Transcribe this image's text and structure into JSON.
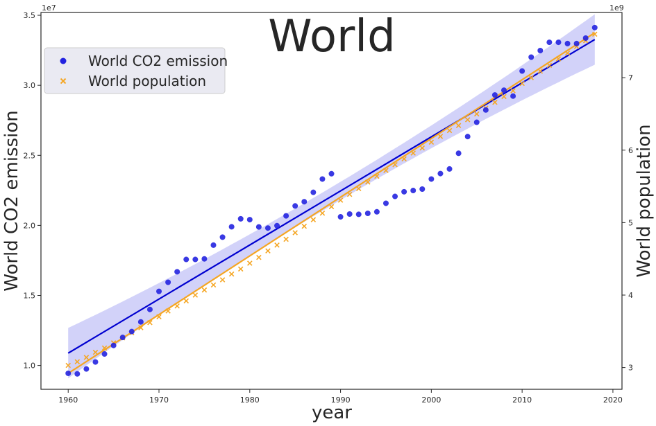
{
  "chart_data": {
    "type": "scatter",
    "title": "World",
    "xlabel": "year",
    "ylabel_left": "World  CO2 emission",
    "ylabel_right": "World  population",
    "left_offset_text": "1e7",
    "right_offset_text": "1e9",
    "xlim": [
      1957,
      2021
    ],
    "ylim_left": [
      0.83,
      3.52
    ],
    "ylim_right": [
      2.7,
      7.9
    ],
    "x_ticks": [
      1960,
      1970,
      1980,
      1990,
      2000,
      2010,
      2020
    ],
    "y_left_ticks": [
      1.0,
      1.5,
      2.0,
      2.5,
      3.0,
      3.5
    ],
    "y_left_tick_labels": [
      "1.0",
      "1.5",
      "2.0",
      "2.5",
      "3.0",
      "3.5"
    ],
    "y_right_ticks": [
      3,
      4,
      5,
      6,
      7
    ],
    "y_right_tick_labels": [
      "3",
      "4",
      "5",
      "6",
      "7"
    ],
    "grid": false,
    "legend_position": "upper-left",
    "series": [
      {
        "name": "World  CO2 emission",
        "axis": "left",
        "marker": "circle",
        "color": "#2323e0",
        "x": [
          1960,
          1961,
          1962,
          1963,
          1964,
          1965,
          1966,
          1967,
          1968,
          1969,
          1970,
          1971,
          1972,
          1973,
          1974,
          1975,
          1976,
          1977,
          1978,
          1979,
          1980,
          1981,
          1982,
          1983,
          1984,
          1985,
          1986,
          1987,
          1988,
          1989,
          1990,
          1991,
          1992,
          1993,
          1994,
          1995,
          1996,
          1997,
          1998,
          1999,
          2000,
          2001,
          2002,
          2003,
          2004,
          2005,
          2006,
          2007,
          2008,
          2009,
          2010,
          2011,
          2012,
          2013,
          2014,
          2015,
          2016,
          2017,
          2018
        ],
        "y": [
          0.944,
          0.94,
          0.975,
          1.025,
          1.082,
          1.143,
          1.2,
          1.242,
          1.311,
          1.4,
          1.529,
          1.594,
          1.669,
          1.757,
          1.757,
          1.761,
          1.859,
          1.916,
          1.99,
          2.047,
          2.041,
          1.989,
          1.981,
          1.998,
          2.068,
          2.139,
          2.169,
          2.236,
          2.331,
          2.369,
          2.061,
          2.081,
          2.079,
          2.086,
          2.097,
          2.158,
          2.207,
          2.24,
          2.249,
          2.259,
          2.331,
          2.37,
          2.403,
          2.515,
          2.634,
          2.736,
          2.824,
          2.931,
          2.965,
          2.923,
          3.102,
          3.201,
          3.248,
          3.307,
          3.307,
          3.298,
          3.298,
          3.337,
          3.412
        ]
      },
      {
        "name": "World  population",
        "axis": "right",
        "marker": "x",
        "color": "#f5a623",
        "x": [
          1960,
          1961,
          1962,
          1963,
          1964,
          1965,
          1966,
          1967,
          1968,
          1969,
          1970,
          1971,
          1972,
          1973,
          1974,
          1975,
          1976,
          1977,
          1978,
          1979,
          1980,
          1981,
          1982,
          1983,
          1984,
          1985,
          1986,
          1987,
          1988,
          1989,
          1990,
          1991,
          1992,
          1993,
          1994,
          1995,
          1996,
          1997,
          1998,
          1999,
          2000,
          2001,
          2002,
          2003,
          2004,
          2005,
          2006,
          2007,
          2008,
          2009,
          2010,
          2011,
          2012,
          2013,
          2014,
          2015,
          2016,
          2017,
          2018
        ],
        "y": [
          3.03,
          3.08,
          3.14,
          3.21,
          3.27,
          3.34,
          3.41,
          3.48,
          3.55,
          3.62,
          3.7,
          3.78,
          3.85,
          3.92,
          4.0,
          4.07,
          4.14,
          4.21,
          4.29,
          4.36,
          4.44,
          4.52,
          4.61,
          4.69,
          4.77,
          4.86,
          4.95,
          5.04,
          5.13,
          5.22,
          5.31,
          5.39,
          5.47,
          5.56,
          5.64,
          5.72,
          5.8,
          5.88,
          5.96,
          6.03,
          6.11,
          6.19,
          6.27,
          6.34,
          6.42,
          6.5,
          6.58,
          6.66,
          6.74,
          6.82,
          6.92,
          7.0,
          7.09,
          7.17,
          7.26,
          7.34,
          7.43,
          7.51,
          7.6
        ]
      }
    ],
    "regression": {
      "left": {
        "x": [
          1960,
          2018
        ],
        "y": [
          1.088,
          3.327
        ],
        "line_color": "#0000d0",
        "band_color": "#b4b4f5"
      },
      "right": {
        "x": [
          1960,
          2018
        ],
        "y": [
          2.92,
          7.62
        ],
        "line_color": "#f5a623"
      }
    }
  }
}
